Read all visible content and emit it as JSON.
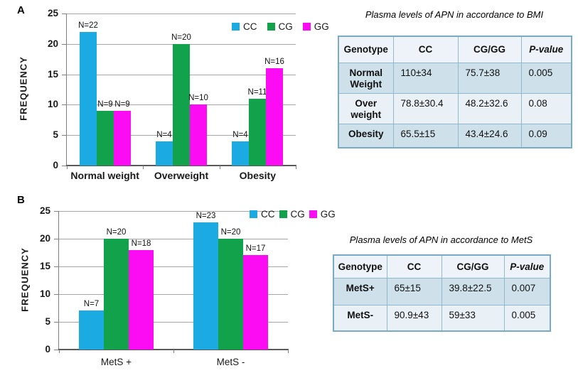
{
  "panels": {
    "a": "A",
    "b": "B"
  },
  "chart_data": [
    {
      "type": "bar",
      "panel": "A",
      "title": "",
      "ylabel": "FREQUENCY",
      "xlabel": "",
      "ylim": [
        0,
        25
      ],
      "ytick_step": 5,
      "grid": true,
      "legend_position": "top-right",
      "categories": [
        "Normal weight",
        "Overweight",
        "Obesity"
      ],
      "series": [
        {
          "name": "CC",
          "color": "#1BAAE2",
          "values": [
            22,
            4,
            4
          ],
          "labels": [
            "N=22",
            "N=4",
            "N=4"
          ]
        },
        {
          "name": "CG",
          "color": "#12A24B",
          "values": [
            9,
            20,
            11
          ],
          "labels": [
            "N=9",
            "N=20",
            "N=11"
          ]
        },
        {
          "name": "GG",
          "color": "#FB0CF2",
          "values": [
            9,
            10,
            16
          ],
          "labels": [
            "N=9",
            "N=10",
            "N=16"
          ]
        }
      ]
    },
    {
      "type": "bar",
      "panel": "B",
      "title": "",
      "ylabel": "FREQUENCY",
      "xlabel": "",
      "ylim": [
        0,
        25
      ],
      "ytick_step": 5,
      "grid": true,
      "legend_position": "top-right",
      "categories": [
        "MetS +",
        "MetS -"
      ],
      "series": [
        {
          "name": "CC",
          "color": "#1BAAE2",
          "values": [
            7,
            23
          ],
          "labels": [
            "N=7",
            "N=23"
          ]
        },
        {
          "name": "CG",
          "color": "#12A24B",
          "values": [
            20,
            20
          ],
          "labels": [
            "N=20",
            "N=20"
          ]
        },
        {
          "name": "GG",
          "color": "#FB0CF2",
          "values": [
            18,
            17
          ],
          "labels": [
            "N=18",
            "N=17"
          ]
        }
      ]
    }
  ],
  "tables": [
    {
      "title": "Plasma levels of APN in accordance to BMI",
      "headers": [
        "Genotype",
        "CC",
        "CG/GG",
        "P-value"
      ],
      "rows": [
        [
          "Normal Weight",
          "110±34",
          "75.7±38",
          "0.005"
        ],
        [
          "Over weight",
          "78.8±30.4",
          "48.2±32.6",
          "0.08"
        ],
        [
          "Obesity",
          "65.5±15",
          "43.4±24.6",
          "0.09"
        ]
      ]
    },
    {
      "title": "Plasma levels of APN in accordance to MetS",
      "headers": [
        "Genotype",
        "CC",
        "CG/GG",
        "P-value"
      ],
      "rows": [
        [
          "MetS+",
          "65±15",
          "39.8±22.5",
          "0.007"
        ],
        [
          "MetS-",
          "90.9±43",
          "59±33",
          "0.005"
        ]
      ]
    }
  ],
  "colors": {
    "grid": "#A6A6A6",
    "axis": "#595959",
    "tick": "#808080",
    "table_border": "#8FB9CC",
    "table_outer_border": "#79ACC4",
    "table_header_bg": "#EDF3F8",
    "table_band_dark": "#CEE0EA",
    "table_band_light": "#EAF1F6"
  }
}
